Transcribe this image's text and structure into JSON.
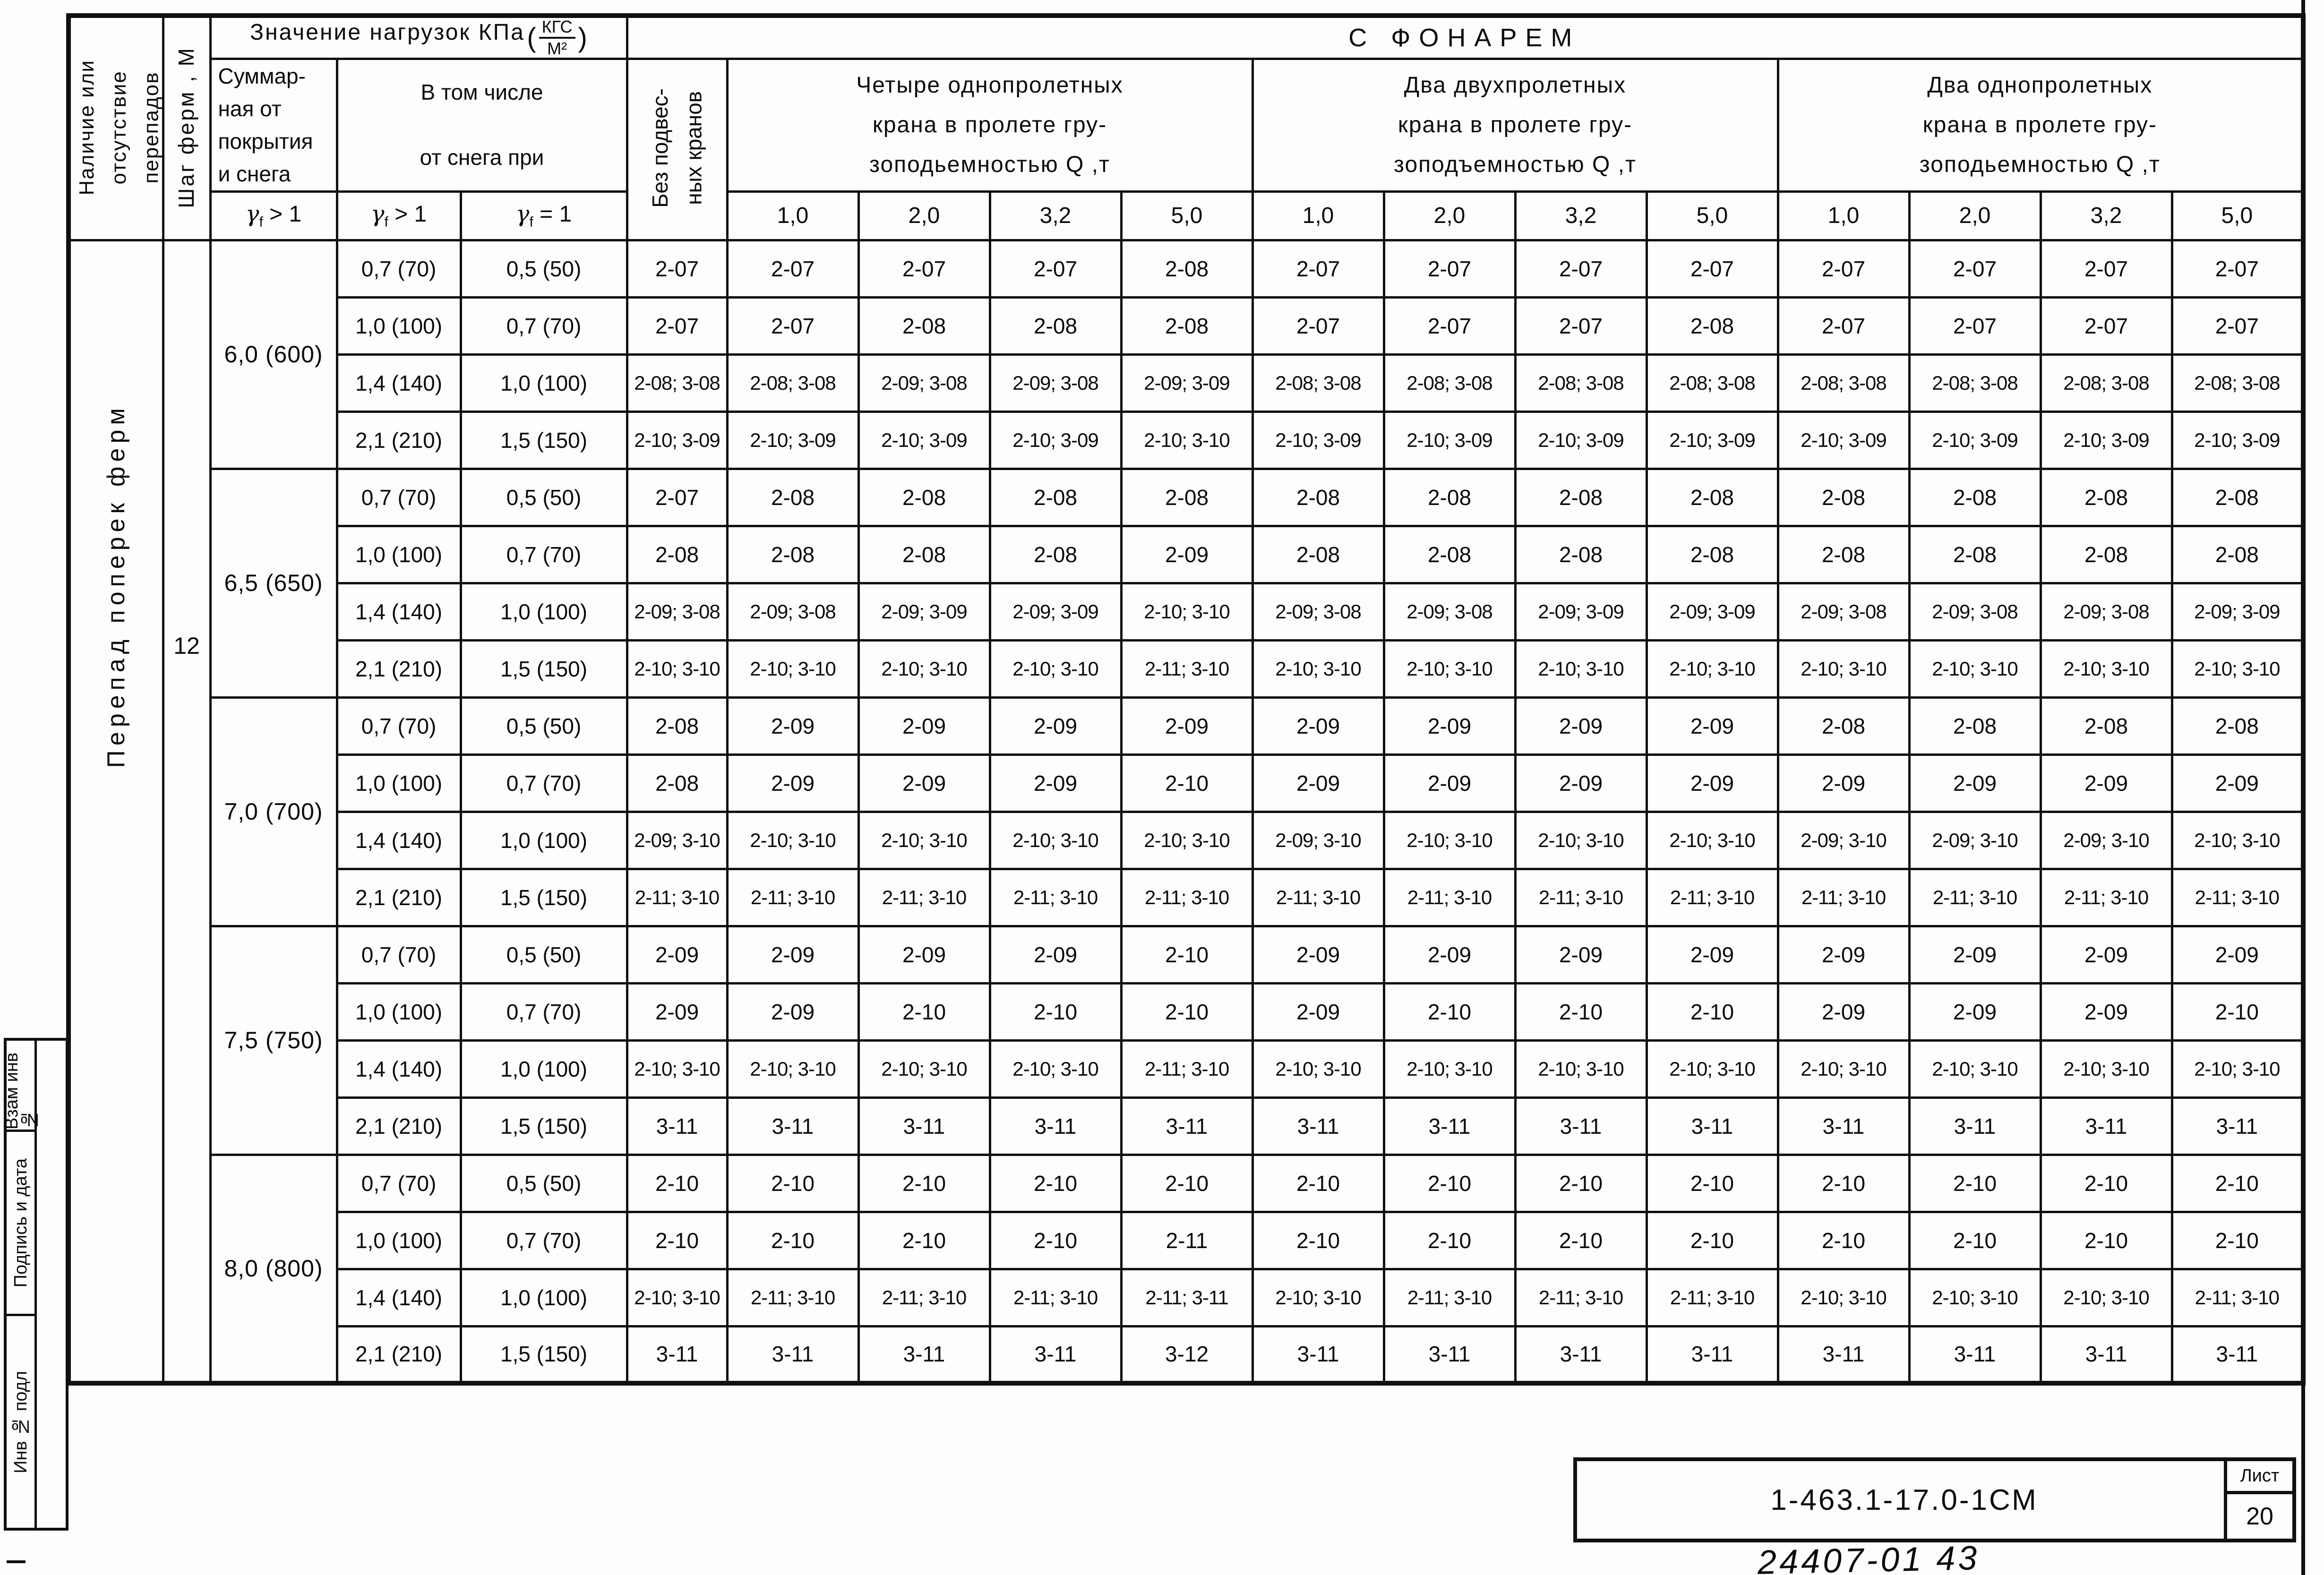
{
  "table": {
    "header": {
      "presence": "Наличие или\nотсутствие\nперепадов",
      "spacing": "Шаг ферм , М",
      "loads_title": "Значение нагрузок КПа",
      "loads_frac_top": "КГС",
      "loads_frac_bottom": "М²",
      "with_lantern": "С  ФОНАРЕМ",
      "total_load": "Суммар-\nная от\nпокрытия\nи снега",
      "including_snow": "В том числе\n\nот снега при",
      "no_cranes": "Без подвес-\nных кранов",
      "group_four_single": "Четыре однопролетных\nкрана в пролете гру-\nзоподьемностью Q ,т",
      "group_two_double": "Два двухпролетных\nкрана в пролете гру-\nзоподъемностью Q ,т",
      "group_two_single": "Два однопролетных\nкрана в пролете гру-\nзоподьемностью Q ,т",
      "gammas": [
        {
          "sym": "γ",
          "sub": "f",
          "rel": " > 1"
        },
        {
          "sym": "γ",
          "sub": "f",
          "rel": " > 1"
        },
        {
          "sym": "γ",
          "sub": "f",
          "rel": " = 1"
        }
      ],
      "capacities": [
        "1,0",
        "2,0",
        "3,2",
        "5,0"
      ]
    },
    "row_label_vertical": "Перепад  поперек  ферм",
    "spacing_value": "12",
    "groups": [
      {
        "total": "6,0 (600)",
        "rows": [
          {
            "s1": "0,7 (70)",
            "s2": "0,5 (50)",
            "c": [
              "2-07",
              "2-07",
              "2-07",
              "2-07",
              "2-08",
              "2-07",
              "2-07",
              "2-07",
              "2-07",
              "2-07",
              "2-07",
              "2-07",
              "2-07"
            ]
          },
          {
            "s1": "1,0 (100)",
            "s2": "0,7 (70)",
            "c": [
              "2-07",
              "2-07",
              "2-08",
              "2-08",
              "2-08",
              "2-07",
              "2-07",
              "2-07",
              "2-08",
              "2-07",
              "2-07",
              "2-07",
              "2-07"
            ]
          },
          {
            "s1": "1,4 (140)",
            "s2": "1,0 (100)",
            "c": [
              "2-08; 3-08",
              "2-08; 3-08",
              "2-09; 3-08",
              "2-09; 3-08",
              "2-09; 3-09",
              "2-08; 3-08",
              "2-08; 3-08",
              "2-08; 3-08",
              "2-08; 3-08",
              "2-08; 3-08",
              "2-08; 3-08",
              "2-08; 3-08",
              "2-08; 3-08"
            ]
          },
          {
            "s1": "2,1 (210)",
            "s2": "1,5 (150)",
            "c": [
              "2-10; 3-09",
              "2-10; 3-09",
              "2-10; 3-09",
              "2-10; 3-09",
              "2-10; 3-10",
              "2-10; 3-09",
              "2-10; 3-09",
              "2-10; 3-09",
              "2-10; 3-09",
              "2-10; 3-09",
              "2-10; 3-09",
              "2-10; 3-09",
              "2-10; 3-09"
            ]
          }
        ]
      },
      {
        "total": "6,5 (650)",
        "rows": [
          {
            "s1": "0,7 (70)",
            "s2": "0,5 (50)",
            "c": [
              "2-07",
              "2-08",
              "2-08",
              "2-08",
              "2-08",
              "2-08",
              "2-08",
              "2-08",
              "2-08",
              "2-08",
              "2-08",
              "2-08",
              "2-08"
            ]
          },
          {
            "s1": "1,0 (100)",
            "s2": "0,7 (70)",
            "c": [
              "2-08",
              "2-08",
              "2-08",
              "2-08",
              "2-09",
              "2-08",
              "2-08",
              "2-08",
              "2-08",
              "2-08",
              "2-08",
              "2-08",
              "2-08"
            ]
          },
          {
            "s1": "1,4 (140)",
            "s2": "1,0 (100)",
            "c": [
              "2-09; 3-08",
              "2-09; 3-08",
              "2-09; 3-09",
              "2-09; 3-09",
              "2-10; 3-10",
              "2-09; 3-08",
              "2-09; 3-08",
              "2-09; 3-09",
              "2-09; 3-09",
              "2-09; 3-08",
              "2-09; 3-08",
              "2-09; 3-08",
              "2-09; 3-09"
            ]
          },
          {
            "s1": "2,1 (210)",
            "s2": "1,5 (150)",
            "c": [
              "2-10; 3-10",
              "2-10; 3-10",
              "2-10; 3-10",
              "2-10; 3-10",
              "2-11; 3-10",
              "2-10; 3-10",
              "2-10; 3-10",
              "2-10; 3-10",
              "2-10; 3-10",
              "2-10; 3-10",
              "2-10; 3-10",
              "2-10; 3-10",
              "2-10; 3-10"
            ]
          }
        ]
      },
      {
        "total": "7,0 (700)",
        "rows": [
          {
            "s1": "0,7 (70)",
            "s2": "0,5 (50)",
            "c": [
              "2-08",
              "2-09",
              "2-09",
              "2-09",
              "2-09",
              "2-09",
              "2-09",
              "2-09",
              "2-09",
              "2-08",
              "2-08",
              "2-08",
              "2-08"
            ]
          },
          {
            "s1": "1,0 (100)",
            "s2": "0,7 (70)",
            "c": [
              "2-08",
              "2-09",
              "2-09",
              "2-09",
              "2-10",
              "2-09",
              "2-09",
              "2-09",
              "2-09",
              "2-09",
              "2-09",
              "2-09",
              "2-09"
            ]
          },
          {
            "s1": "1,4 (140)",
            "s2": "1,0 (100)",
            "c": [
              "2-09; 3-10",
              "2-10; 3-10",
              "2-10; 3-10",
              "2-10; 3-10",
              "2-10; 3-10",
              "2-09; 3-10",
              "2-10; 3-10",
              "2-10; 3-10",
              "2-10; 3-10",
              "2-09; 3-10",
              "2-09; 3-10",
              "2-09; 3-10",
              "2-10; 3-10"
            ]
          },
          {
            "s1": "2,1 (210)",
            "s2": "1,5 (150)",
            "c": [
              "2-11; 3-10",
              "2-11; 3-10",
              "2-11; 3-10",
              "2-11; 3-10",
              "2-11; 3-10",
              "2-11; 3-10",
              "2-11; 3-10",
              "2-11; 3-10",
              "2-11; 3-10",
              "2-11; 3-10",
              "2-11; 3-10",
              "2-11; 3-10",
              "2-11; 3-10"
            ]
          }
        ]
      },
      {
        "total": "7,5 (750)",
        "rows": [
          {
            "s1": "0,7 (70)",
            "s2": "0,5 (50)",
            "c": [
              "2-09",
              "2-09",
              "2-09",
              "2-09",
              "2-10",
              "2-09",
              "2-09",
              "2-09",
              "2-09",
              "2-09",
              "2-09",
              "2-09",
              "2-09"
            ]
          },
          {
            "s1": "1,0 (100)",
            "s2": "0,7 (70)",
            "c": [
              "2-09",
              "2-09",
              "2-10",
              "2-10",
              "2-10",
              "2-09",
              "2-10",
              "2-10",
              "2-10",
              "2-09",
              "2-09",
              "2-09",
              "2-10"
            ]
          },
          {
            "s1": "1,4 (140)",
            "s2": "1,0 (100)",
            "c": [
              "2-10; 3-10",
              "2-10; 3-10",
              "2-10; 3-10",
              "2-10; 3-10",
              "2-11; 3-10",
              "2-10; 3-10",
              "2-10; 3-10",
              "2-10; 3-10",
              "2-10; 3-10",
              "2-10; 3-10",
              "2-10; 3-10",
              "2-10; 3-10",
              "2-10; 3-10"
            ]
          },
          {
            "s1": "2,1 (210)",
            "s2": "1,5 (150)",
            "c": [
              "3-11",
              "3-11",
              "3-11",
              "3-11",
              "3-11",
              "3-11",
              "3-11",
              "3-11",
              "3-11",
              "3-11",
              "3-11",
              "3-11",
              "3-11"
            ]
          }
        ]
      },
      {
        "total": "8,0 (800)",
        "rows": [
          {
            "s1": "0,7 (70)",
            "s2": "0,5 (50)",
            "c": [
              "2-10",
              "2-10",
              "2-10",
              "2-10",
              "2-10",
              "2-10",
              "2-10",
              "2-10",
              "2-10",
              "2-10",
              "2-10",
              "2-10",
              "2-10"
            ]
          },
          {
            "s1": "1,0 (100)",
            "s2": "0,7 (70)",
            "c": [
              "2-10",
              "2-10",
              "2-10",
              "2-10",
              "2-11",
              "2-10",
              "2-10",
              "2-10",
              "2-10",
              "2-10",
              "2-10",
              "2-10",
              "2-10"
            ]
          },
          {
            "s1": "1,4 (140)",
            "s2": "1,0 (100)",
            "c": [
              "2-10; 3-10",
              "2-11; 3-10",
              "2-11; 3-10",
              "2-11; 3-10",
              "2-11; 3-11",
              "2-10; 3-10",
              "2-11; 3-10",
              "2-11; 3-10",
              "2-11; 3-10",
              "2-10; 3-10",
              "2-10; 3-10",
              "2-10; 3-10",
              "2-11; 3-10"
            ]
          },
          {
            "s1": "2,1 (210)",
            "s2": "1,5 (150)",
            "c": [
              "3-11",
              "3-11",
              "3-11",
              "3-11",
              "3-12",
              "3-11",
              "3-11",
              "3-11",
              "3-11",
              "3-11",
              "3-11",
              "3-11",
              "3-11"
            ]
          }
        ]
      }
    ]
  },
  "stamp": {
    "cells": [
      "Взам инв №",
      "Подпись и дата",
      "Инв № подл"
    ]
  },
  "titleblock": {
    "doc_number": "1-463.1-17.0-1СМ",
    "sheet_label": "Лист",
    "sheet_number": "20",
    "handwritten": "24407-01  43"
  }
}
